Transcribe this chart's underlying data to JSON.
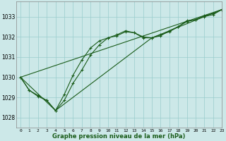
{
  "bg_color": "#cce8e8",
  "grid_color": "#99cccc",
  "line_color": "#1a5c1a",
  "marker_color": "#1a5c1a",
  "xlabel": "Graphe pression niveau de la mer (hPa)",
  "ylim": [
    1027.5,
    1033.75
  ],
  "xlim": [
    -0.5,
    23
  ],
  "yticks": [
    1028,
    1029,
    1030,
    1031,
    1032,
    1033
  ],
  "xticks": [
    0,
    1,
    2,
    3,
    4,
    5,
    6,
    7,
    8,
    9,
    10,
    11,
    12,
    13,
    14,
    15,
    16,
    17,
    18,
    19,
    20,
    21,
    22,
    23
  ],
  "line1_x": [
    0,
    1,
    2,
    3,
    4,
    5,
    6,
    7,
    8,
    9,
    10,
    11,
    12,
    13,
    14,
    15,
    16,
    17,
    18,
    19,
    20,
    21,
    22,
    23
  ],
  "line1_y": [
    1030.0,
    1029.35,
    1029.1,
    1028.85,
    1028.35,
    1028.85,
    1029.7,
    1030.35,
    1031.1,
    1031.6,
    1031.95,
    1032.05,
    1032.25,
    1032.2,
    1031.95,
    1031.95,
    1032.05,
    1032.3,
    1032.5,
    1032.8,
    1032.85,
    1033.05,
    1033.15,
    1033.35
  ],
  "line2_x": [
    0,
    1,
    2,
    3,
    4,
    5,
    6,
    7,
    8,
    9,
    10,
    11,
    12,
    13,
    14,
    15,
    16,
    17,
    18,
    19,
    20,
    21,
    22,
    23
  ],
  "line2_y": [
    1030.0,
    1029.35,
    1029.05,
    1028.85,
    1028.35,
    1029.15,
    1030.1,
    1030.85,
    1031.45,
    1031.8,
    1031.95,
    1032.1,
    1032.3,
    1032.2,
    1032.0,
    1031.95,
    1032.1,
    1032.25,
    1032.5,
    1032.75,
    1032.85,
    1033.0,
    1033.1,
    1033.35
  ],
  "line3_x": [
    0,
    23
  ],
  "line3_y": [
    1030.0,
    1033.35
  ],
  "line4_x": [
    0,
    4,
    15,
    23
  ],
  "line4_y": [
    1030.0,
    1028.35,
    1031.95,
    1033.35
  ]
}
